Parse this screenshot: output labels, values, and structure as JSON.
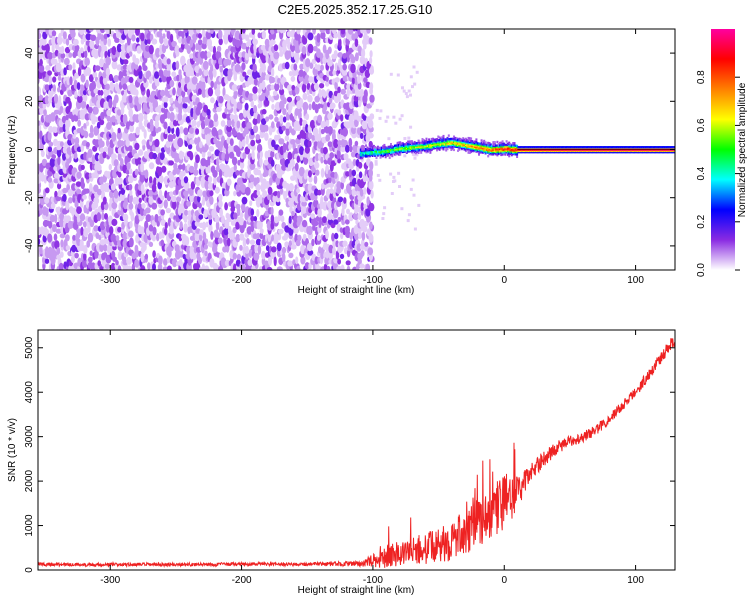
{
  "title": "C2E5.2025.352.17.25.G10",
  "chart_data": [
    {
      "type": "heatmap",
      "xlabel": "Height of straight line (km)",
      "ylabel": "Frequency (Hz)",
      "xlim": [
        -355,
        130
      ],
      "ylim": [
        -50,
        50
      ],
      "xticks": [
        -300,
        -200,
        -100,
        0,
        100
      ],
      "yticks": [
        -40,
        -20,
        0,
        20,
        40
      ],
      "colorbar": {
        "label": "Normalized spectral amplitude",
        "range": [
          0,
          1
        ],
        "ticks": [
          0.0,
          0.2,
          0.4,
          0.6,
          0.8
        ],
        "tick_labels": [
          "0.0",
          "0.2",
          "0.4",
          "0.6",
          "0.8"
        ],
        "colormap": [
          "#ffffff",
          "#8a2be2",
          "#0000ff",
          "#00ffff",
          "#00ff00",
          "#ffff00",
          "#ff8000",
          "#ff0000",
          "#ff00a0"
        ]
      },
      "noise_region": {
        "x_range": [
          -355,
          -102
        ],
        "frequency_range": [
          -50,
          50
        ],
        "amplitude_range": [
          0.02,
          0.15
        ]
      },
      "signal_track": {
        "x": [
          -110,
          -100,
          -90,
          -80,
          -70,
          -60,
          -50,
          -40,
          -30,
          -20,
          -10,
          0,
          10,
          50,
          130
        ],
        "frequency": [
          -1.5,
          -1.0,
          -0.5,
          0.5,
          1.0,
          1.5,
          2.5,
          3.0,
          2.0,
          1.0,
          0.0,
          0.5,
          0.0,
          0.0,
          0.0
        ],
        "amplitude": [
          0.4,
          0.45,
          0.5,
          0.55,
          0.55,
          0.6,
          0.6,
          0.65,
          0.7,
          0.75,
          0.8,
          0.85,
          0.9,
          0.95,
          0.95
        ]
      }
    },
    {
      "type": "line",
      "xlabel": "Height of straight line (km)",
      "ylabel": "SNR (10 * v/v)",
      "xlim": [
        -355,
        130
      ],
      "ylim": [
        0,
        5400
      ],
      "xticks": [
        -300,
        -200,
        -100,
        0,
        100
      ],
      "yticks": [
        0,
        1000,
        2000,
        3000,
        4000,
        5000
      ],
      "series": [
        {
          "color": "#ee2222",
          "x": [
            -355,
            -300,
            -250,
            -200,
            -150,
            -110,
            -100,
            -90,
            -80,
            -70,
            -60,
            -50,
            -40,
            -30,
            -20,
            -10,
            0,
            10,
            20,
            30,
            40,
            50,
            60,
            70,
            80,
            90,
            100,
            110,
            120,
            130
          ],
          "y": [
            130,
            120,
            125,
            130,
            130,
            140,
            200,
            300,
            380,
            420,
            480,
            540,
            660,
            850,
            1050,
            1300,
            1500,
            1700,
            2200,
            2500,
            2750,
            2900,
            3000,
            3150,
            3400,
            3700,
            4000,
            4400,
            4800,
            5200
          ],
          "noise_amplitude": [
            40,
            40,
            40,
            40,
            40,
            60,
            150,
            250,
            300,
            320,
            350,
            380,
            450,
            500,
            550,
            600,
            700,
            350,
            200,
            180,
            150,
            120,
            120,
            120,
            120,
            120,
            120,
            130,
            140,
            150
          ]
        }
      ]
    }
  ]
}
